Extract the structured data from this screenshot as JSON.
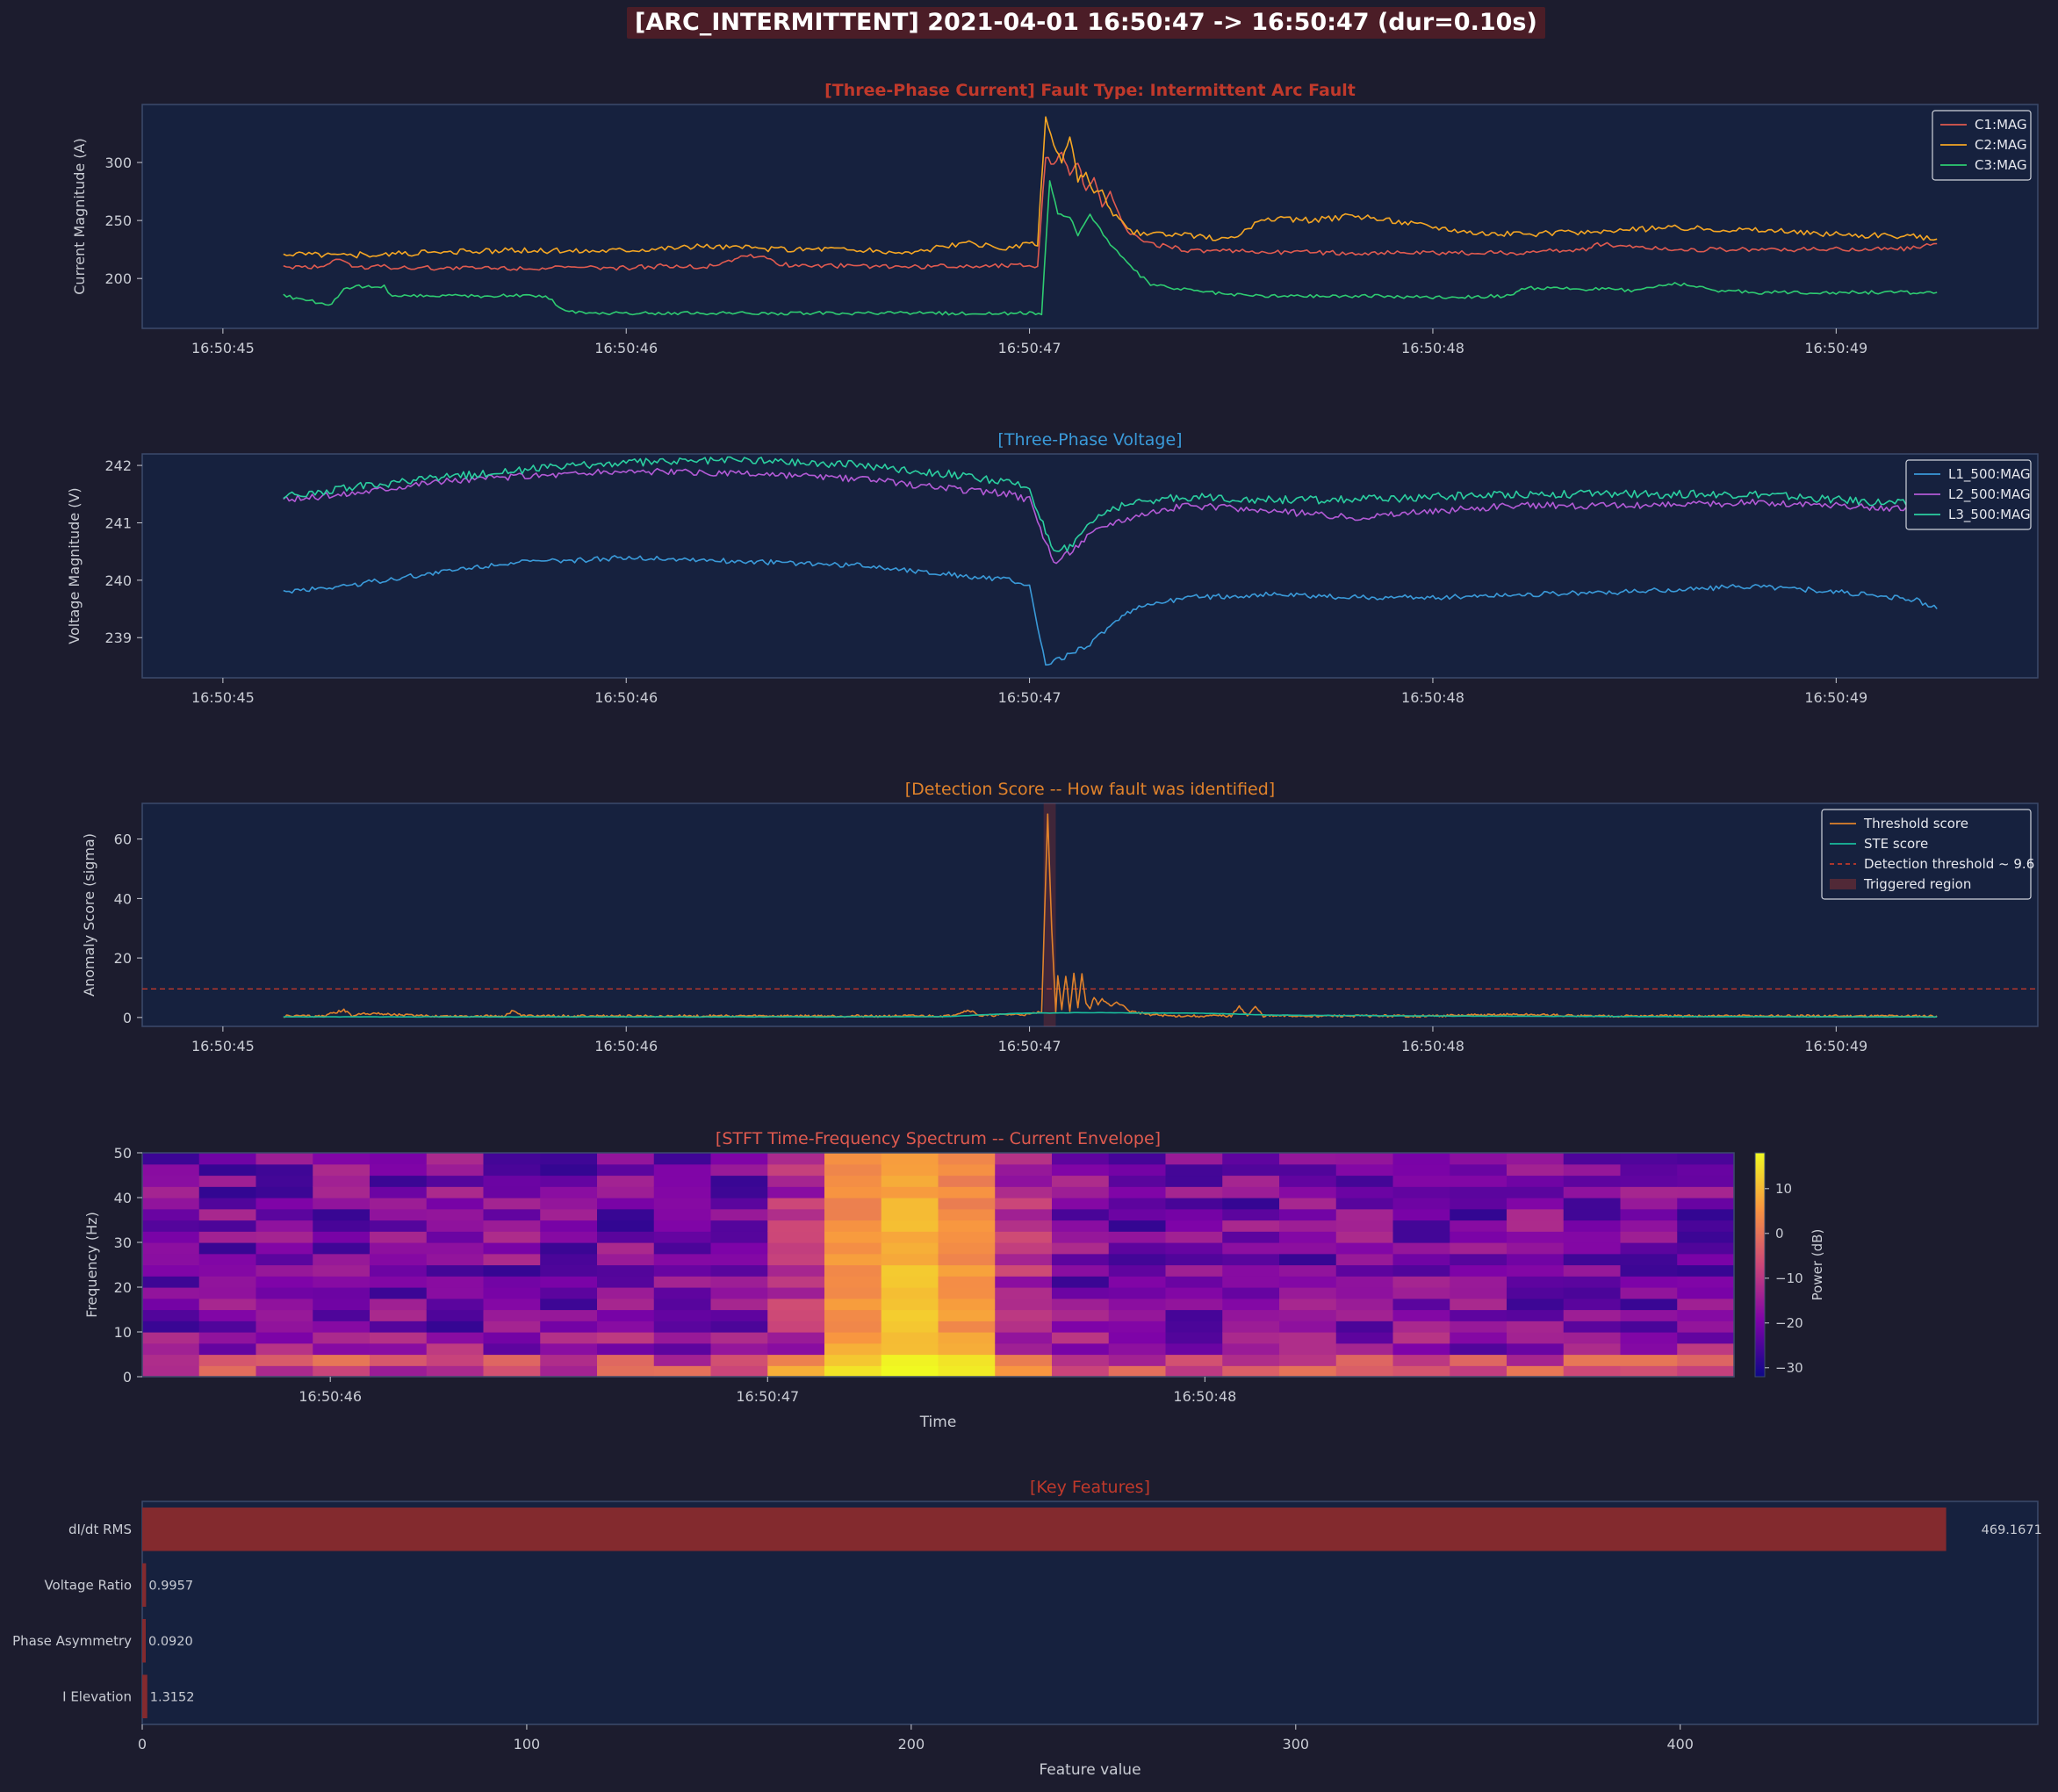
{
  "header": {
    "title": "[ARC_INTERMITTENT]  2021-04-01 16:50:47 -> 16:50:47  (dur=0.10s)"
  },
  "theme": {
    "figure_bg": "#1c1c2e",
    "axes_bg": "#16213e",
    "frame": "#3b4a6b",
    "text": "#c9ccd4",
    "red": "#e05a4f",
    "orange": "#f5a623",
    "green": "#2ecc71",
    "blue": "#3a9ad9",
    "purple": "#b35ad6",
    "teal": "#2bcfa0",
    "score_orange": "#e0822b",
    "ste": "#1abc9c",
    "threshold": "#c0392b",
    "bar": "#832a2e"
  },
  "chart_data": [
    {
      "id": "current",
      "type": "line",
      "title": "[Three-Phase Current]  Fault Type: Intermittent Arc Fault",
      "title_color": "#c0392b",
      "ylabel": "Current Magnitude (A)",
      "xlim": [
        -0.2,
        4.5
      ],
      "ylim": [
        157,
        350
      ],
      "x_ticks": [
        0,
        1,
        2,
        3,
        4
      ],
      "x_tick_labels": [
        "16:50:45",
        "16:50:46",
        "16:50:47",
        "16:50:48",
        "16:50:49"
      ],
      "y_ticks": [
        200,
        250,
        300
      ],
      "legend_position": "top-right",
      "series": [
        {
          "name": "C1:MAG",
          "color": "#e05a4f",
          "x": [
            0.15,
            0.25,
            0.28,
            0.3,
            0.32,
            0.4,
            0.5,
            0.8,
            1.0,
            1.1,
            1.2,
            1.3,
            1.35,
            1.38,
            1.5,
            1.7,
            1.9,
            2.0,
            2.02,
            2.04,
            2.06,
            2.08,
            2.1,
            2.12,
            2.14,
            2.16,
            2.18,
            2.2,
            2.23,
            2.25,
            2.3,
            2.4,
            2.6,
            2.8,
            3.0,
            3.2,
            3.38,
            3.4,
            3.6,
            3.8,
            4.0,
            4.2,
            4.25
          ],
          "y": [
            210,
            210,
            218,
            215,
            210,
            210,
            209,
            209,
            209,
            211,
            210,
            220,
            218,
            212,
            211,
            210,
            211,
            212,
            210,
            305,
            298,
            310,
            290,
            300,
            275,
            285,
            262,
            275,
            248,
            238,
            230,
            224,
            223,
            222,
            222,
            222,
            225,
            230,
            225,
            225,
            225,
            226,
            230
          ]
        },
        {
          "name": "C2:MAG",
          "color": "#f5a623",
          "x": [
            0.15,
            0.3,
            0.5,
            0.7,
            0.9,
            1.0,
            1.2,
            1.4,
            1.5,
            1.7,
            1.8,
            1.85,
            1.9,
            1.95,
            2.0,
            2.02,
            2.04,
            2.06,
            2.08,
            2.1,
            2.12,
            2.14,
            2.16,
            2.18,
            2.2,
            2.23,
            2.25,
            2.3,
            2.4,
            2.5,
            2.55,
            2.6,
            2.7,
            2.8,
            2.9,
            3.0,
            3.1,
            3.2,
            3.4,
            3.6,
            3.8,
            4.0,
            4.2,
            4.25
          ],
          "y": [
            222,
            220,
            222,
            224,
            224,
            225,
            228,
            225,
            226,
            222,
            228,
            230,
            228,
            226,
            230,
            228,
            340,
            315,
            300,
            322,
            285,
            290,
            272,
            275,
            258,
            248,
            240,
            238,
            237,
            234,
            245,
            252,
            250,
            254,
            250,
            245,
            240,
            238,
            240,
            244,
            242,
            238,
            236,
            234
          ]
        },
        {
          "name": "C3:MAG",
          "color": "#2ecc71",
          "x": [
            0.15,
            0.23,
            0.27,
            0.3,
            0.33,
            0.4,
            0.42,
            0.45,
            0.6,
            0.8,
            0.85,
            0.9,
            1.0,
            1.2,
            1.4,
            1.6,
            1.8,
            1.9,
            2.0,
            2.03,
            2.05,
            2.07,
            2.1,
            2.12,
            2.15,
            2.2,
            2.25,
            2.3,
            2.35,
            2.4,
            2.5,
            2.6,
            2.8,
            3.0,
            3.2,
            3.22,
            3.5,
            3.6,
            3.7,
            3.8,
            4.0,
            4.2,
            4.25
          ],
          "y": [
            185,
            180,
            178,
            190,
            193,
            193,
            185,
            185,
            185,
            185,
            172,
            170,
            170,
            170,
            170,
            170,
            170,
            170,
            170,
            168,
            285,
            255,
            252,
            238,
            255,
            230,
            210,
            195,
            192,
            190,
            186,
            185,
            185,
            184,
            185,
            192,
            190,
            196,
            190,
            188,
            188,
            188,
            188
          ]
        }
      ]
    },
    {
      "id": "voltage",
      "type": "line",
      "title": "[Three-Phase Voltage]",
      "title_color": "#3a9ad9",
      "ylabel": "Voltage Magnitude (V)",
      "xlim": [
        -0.2,
        4.5
      ],
      "ylim": [
        238.3,
        242.2
      ],
      "x_ticks": [
        0,
        1,
        2,
        3,
        4
      ],
      "x_tick_labels": [
        "16:50:45",
        "16:50:46",
        "16:50:47",
        "16:50:48",
        "16:50:49"
      ],
      "y_ticks": [
        239,
        240,
        241,
        242
      ],
      "legend_position": "top-right",
      "series": [
        {
          "name": "L1_500:MAG",
          "color": "#3a9ad9",
          "x": [
            0.15,
            0.3,
            0.5,
            0.7,
            0.9,
            1.0,
            1.2,
            1.4,
            1.6,
            1.8,
            1.95,
            2.0,
            2.04,
            2.06,
            2.1,
            2.15,
            2.2,
            2.25,
            2.3,
            2.4,
            2.6,
            2.8,
            3.0,
            3.2,
            3.5,
            3.8,
            4.0,
            4.2,
            4.25
          ],
          "y": [
            239.8,
            239.9,
            240.1,
            240.3,
            240.35,
            240.4,
            240.35,
            240.3,
            240.25,
            240.1,
            240.0,
            239.9,
            238.5,
            238.6,
            238.7,
            238.9,
            239.2,
            239.45,
            239.6,
            239.7,
            239.75,
            239.7,
            239.7,
            239.75,
            239.8,
            239.9,
            239.8,
            239.65,
            239.5
          ]
        },
        {
          "name": "L2_500:MAG",
          "color": "#b35ad6",
          "x": [
            0.15,
            0.3,
            0.5,
            0.7,
            1.0,
            1.3,
            1.6,
            1.8,
            1.95,
            2.0,
            2.06,
            2.1,
            2.15,
            2.2,
            2.3,
            2.4,
            2.6,
            2.8,
            3.0,
            3.2,
            3.5,
            3.8,
            4.0,
            4.25
          ],
          "y": [
            241.4,
            241.5,
            241.7,
            241.8,
            241.9,
            241.85,
            241.75,
            241.6,
            241.5,
            241.4,
            240.3,
            240.5,
            240.8,
            241.0,
            241.2,
            241.3,
            241.2,
            241.1,
            241.2,
            241.3,
            241.3,
            241.35,
            241.3,
            241.2
          ]
        },
        {
          "name": "L3_500:MAG",
          "color": "#2bcfa0",
          "x": [
            0.15,
            0.3,
            0.5,
            0.7,
            1.0,
            1.3,
            1.6,
            1.8,
            1.95,
            2.0,
            2.06,
            2.1,
            2.15,
            2.2,
            2.3,
            2.4,
            2.6,
            2.8,
            3.0,
            3.2,
            3.5,
            3.8,
            4.0,
            4.25
          ],
          "y": [
            241.45,
            241.6,
            241.75,
            241.9,
            242.05,
            242.1,
            242.0,
            241.85,
            241.7,
            241.6,
            240.45,
            240.6,
            241.0,
            241.25,
            241.4,
            241.45,
            241.4,
            241.4,
            241.45,
            241.5,
            241.5,
            241.5,
            241.4,
            241.3
          ]
        }
      ]
    },
    {
      "id": "score",
      "type": "line",
      "title": "[Detection Score -- How fault was identified]",
      "title_color": "#e0822b",
      "ylabel": "Anomaly Score (sigma)",
      "xlim": [
        -0.2,
        4.5
      ],
      "ylim": [
        -3,
        72
      ],
      "x_ticks": [
        0,
        1,
        2,
        3,
        4
      ],
      "x_tick_labels": [
        "16:50:45",
        "16:50:46",
        "16:50:47",
        "16:50:48",
        "16:50:49"
      ],
      "y_ticks": [
        0,
        20,
        40,
        60
      ],
      "threshold": 9.6,
      "triggered_region": [
        2.035,
        2.065
      ],
      "legend_position": "top-right",
      "legend": [
        "Threshold score",
        "STE score",
        "Detection threshold ~ 9.6",
        "Triggered region"
      ],
      "series": [
        {
          "name": "Threshold score",
          "color": "#e0822b",
          "x": [
            0.15,
            0.25,
            0.3,
            0.32,
            0.35,
            0.5,
            0.7,
            0.72,
            0.74,
            0.9,
            1.2,
            1.5,
            1.8,
            1.85,
            1.88,
            1.95,
            2.0,
            2.03,
            2.045,
            2.055,
            2.065,
            2.07,
            2.08,
            2.09,
            2.1,
            2.11,
            2.12,
            2.13,
            2.14,
            2.15,
            2.16,
            2.17,
            2.18,
            2.2,
            2.22,
            2.25,
            2.3,
            2.35,
            2.4,
            2.5,
            2.52,
            2.54,
            2.56,
            2.58,
            2.6,
            2.8,
            3.0,
            3.2,
            3.4,
            3.6,
            3.8,
            4.0,
            4.25
          ],
          "y": [
            0.5,
            0.5,
            2.5,
            0.5,
            1.5,
            0.5,
            0.5,
            2.5,
            0.5,
            0.5,
            0.5,
            0.5,
            0.5,
            2.5,
            0.5,
            1.0,
            1.0,
            2.0,
            68,
            30,
            2.0,
            14,
            3.0,
            14,
            2.0,
            14.5,
            3.0,
            14.5,
            5.0,
            3.0,
            7.0,
            4.0,
            6.0,
            4.0,
            5.0,
            2.0,
            1.0,
            0.5,
            0.5,
            0.5,
            4.0,
            0.5,
            3.5,
            0.5,
            0.5,
            0.5,
            0.5,
            1.0,
            0.5,
            0.5,
            0.5,
            0.5,
            0.5
          ]
        },
        {
          "name": "STE score",
          "color": "#1abc9c",
          "x": [
            0.15,
            0.5,
            1.0,
            1.5,
            1.8,
            1.9,
            2.0,
            2.05,
            2.1,
            2.2,
            2.3,
            2.4,
            2.5,
            2.6,
            3.0,
            3.5,
            4.0,
            4.25
          ],
          "y": [
            0.2,
            0.2,
            0.2,
            0.2,
            0.3,
            1.0,
            1.5,
            1.5,
            1.6,
            1.6,
            1.5,
            1.5,
            1.2,
            0.8,
            0.5,
            0.3,
            0.2,
            0.2
          ]
        }
      ]
    },
    {
      "id": "stft",
      "type": "heatmap",
      "title": "[STFT Time-Frequency Spectrum -- Current Envelope]",
      "title_color": "#e05a4f",
      "xlabel": "Time",
      "ylabel": "Frequency (Hz)",
      "colorbar_label": "Power (dB)",
      "colorbar_ticks": [
        10,
        0,
        -10,
        -20,
        -30
      ],
      "clim": [
        -32,
        18
      ],
      "xlim": [
        -0.43,
        3.21
      ],
      "ylim": [
        0,
        50
      ],
      "x_ticks": [
        0,
        1,
        2
      ],
      "x_tick_labels": [
        "16:50:46",
        "16:50:47",
        "16:50:48"
      ],
      "y_ticks": [
        0,
        10,
        20,
        30,
        40,
        50
      ],
      "columns": 28,
      "rows": 20,
      "hot_columns": [
        12,
        13,
        14
      ],
      "warm_columns": [
        11,
        15
      ]
    },
    {
      "id": "features",
      "type": "bar",
      "orientation": "horizontal",
      "title": "[Key Features]",
      "title_color": "#c0392b",
      "xlabel": "Feature value",
      "xlim": [
        0,
        493
      ],
      "x_ticks": [
        0,
        100,
        200,
        300,
        400
      ],
      "categories": [
        "dI/dt RMS",
        "Voltage Ratio",
        "Phase Asymmetry",
        "I Elevation"
      ],
      "values": [
        469.1671,
        0.9957,
        0.092,
        1.3152
      ],
      "value_labels": [
        "469.1671",
        "0.9957",
        "0.0920",
        "1.3152"
      ]
    }
  ]
}
